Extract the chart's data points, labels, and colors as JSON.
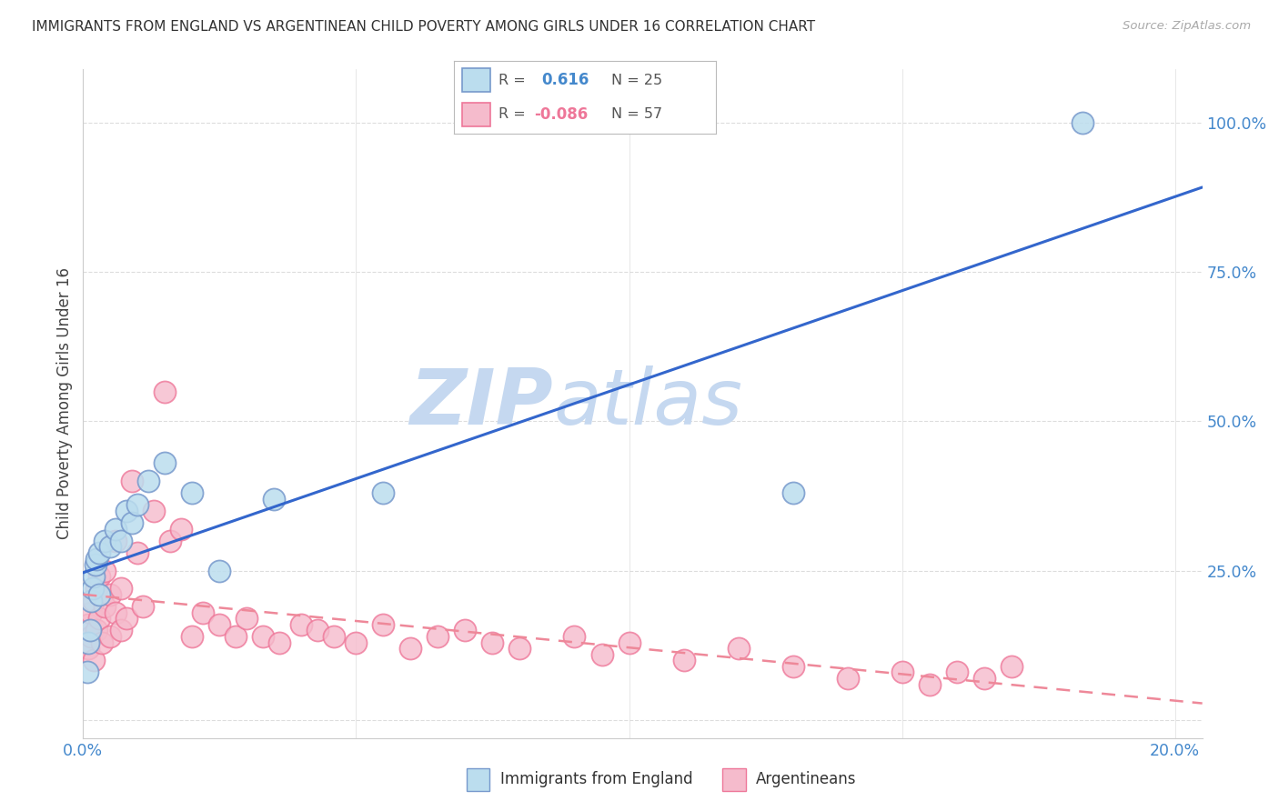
{
  "title": "IMMIGRANTS FROM ENGLAND VS ARGENTINEAN CHILD POVERTY AMONG GIRLS UNDER 16 CORRELATION CHART",
  "source": "Source: ZipAtlas.com",
  "ylabel": "Child Poverty Among Girls Under 16",
  "legend_blue": "Immigrants from England",
  "legend_pink": "Argentineans",
  "blue_R": "0.616",
  "blue_N": "25",
  "pink_R": "-0.086",
  "pink_N": "57",
  "blue_edge": "#7799CC",
  "blue_face": "#BBDDEE",
  "pink_edge": "#EE7799",
  "pink_face": "#F5BBCC",
  "trend_blue": "#3366CC",
  "trend_pink": "#EE8899",
  "watermark_text": "ZIPatlas",
  "watermark_color": "#C5D8F0",
  "blue_x": [
    0.0008,
    0.001,
    0.0013,
    0.0015,
    0.0018,
    0.002,
    0.0022,
    0.0025,
    0.003,
    0.003,
    0.004,
    0.005,
    0.006,
    0.007,
    0.008,
    0.009,
    0.01,
    0.012,
    0.015,
    0.02,
    0.025,
    0.035,
    0.055,
    0.13,
    0.183
  ],
  "blue_y": [
    0.08,
    0.13,
    0.15,
    0.2,
    0.22,
    0.24,
    0.26,
    0.27,
    0.28,
    0.21,
    0.3,
    0.29,
    0.32,
    0.3,
    0.35,
    0.33,
    0.36,
    0.4,
    0.43,
    0.38,
    0.25,
    0.37,
    0.38,
    0.38,
    1.0
  ],
  "pink_x": [
    0.0005,
    0.001,
    0.001,
    0.0015,
    0.0015,
    0.002,
    0.002,
    0.0025,
    0.0025,
    0.003,
    0.003,
    0.0035,
    0.004,
    0.004,
    0.005,
    0.005,
    0.006,
    0.006,
    0.007,
    0.007,
    0.008,
    0.009,
    0.01,
    0.011,
    0.013,
    0.015,
    0.016,
    0.018,
    0.02,
    0.022,
    0.025,
    0.028,
    0.03,
    0.033,
    0.036,
    0.04,
    0.043,
    0.046,
    0.05,
    0.055,
    0.06,
    0.065,
    0.07,
    0.075,
    0.08,
    0.09,
    0.095,
    0.1,
    0.11,
    0.12,
    0.13,
    0.14,
    0.15,
    0.155,
    0.16,
    0.165,
    0.17
  ],
  "pink_y": [
    0.13,
    0.12,
    0.16,
    0.14,
    0.18,
    0.1,
    0.2,
    0.15,
    0.22,
    0.17,
    0.24,
    0.13,
    0.19,
    0.25,
    0.14,
    0.21,
    0.18,
    0.3,
    0.15,
    0.22,
    0.17,
    0.4,
    0.28,
    0.19,
    0.35,
    0.55,
    0.3,
    0.32,
    0.14,
    0.18,
    0.16,
    0.14,
    0.17,
    0.14,
    0.13,
    0.16,
    0.15,
    0.14,
    0.13,
    0.16,
    0.12,
    0.14,
    0.15,
    0.13,
    0.12,
    0.14,
    0.11,
    0.13,
    0.1,
    0.12,
    0.09,
    0.07,
    0.08,
    0.06,
    0.08,
    0.07,
    0.09
  ],
  "xlim": [
    0.0,
    0.205
  ],
  "ylim": [
    -0.03,
    1.09
  ],
  "xticks": [
    0.0,
    0.05,
    0.1,
    0.15,
    0.2
  ],
  "xticklabels": [
    "0.0%",
    "",
    "",
    "",
    "20.0%"
  ],
  "right_yticks": [
    0.0,
    0.25,
    0.5,
    0.75,
    1.0
  ],
  "right_yticklabels": [
    "",
    "25.0%",
    "50.0%",
    "75.0%",
    "100.0%"
  ],
  "grid_color": "#DDDDDD",
  "axis_color": "#CCCCCC",
  "tick_color": "#4488CC",
  "title_fontsize": 11,
  "tick_fontsize": 12.5
}
